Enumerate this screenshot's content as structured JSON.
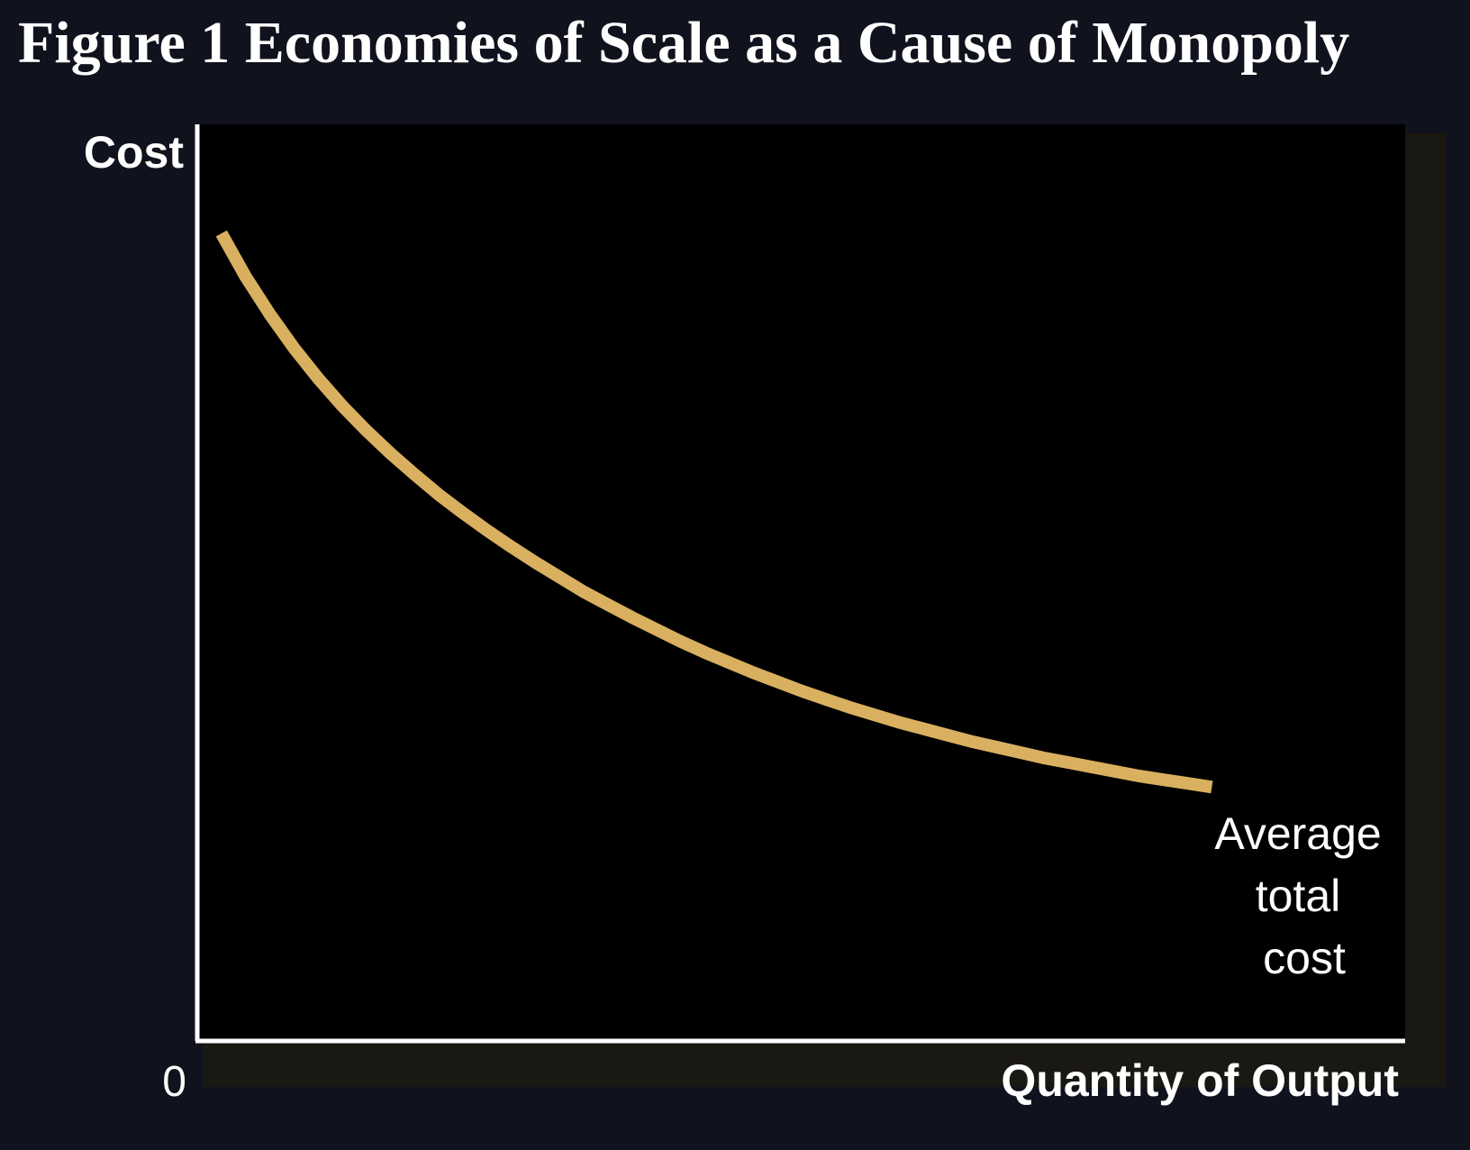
{
  "chart_data": {
    "type": "line",
    "title": "Figure 1 Economies of Scale as a Cause of Monopoly",
    "xlabel": "Quantity of Output",
    "ylabel": "Cost",
    "origin_label": "0",
    "series": [
      {
        "name": "Average total cost",
        "label_lines": [
          "Average",
          "total",
          "cost"
        ],
        "color": "#d9b060",
        "x": [
          2,
          4,
          6,
          8,
          10,
          12,
          14,
          16,
          18,
          20,
          22,
          24,
          26,
          28,
          30,
          32,
          34,
          36,
          38,
          40,
          42,
          44,
          46,
          48,
          50,
          52,
          54,
          56,
          58,
          60,
          62,
          64,
          66,
          68,
          70,
          72,
          74,
          76,
          78,
          80,
          82,
          84
        ],
        "values": [
          88.1,
          83.4,
          79.3,
          75.6,
          72.3,
          69.3,
          66.6,
          64.1,
          61.8,
          59.6,
          57.6,
          55.7,
          53.9,
          52.2,
          50.6,
          49.0,
          47.6,
          46.2,
          44.9,
          43.6,
          42.4,
          41.3,
          40.2,
          39.2,
          38.2,
          37.3,
          36.4,
          35.6,
          34.8,
          34.1,
          33.4,
          32.7,
          32.1,
          31.5,
          30.9,
          30.4,
          29.9,
          29.4,
          28.9,
          28.5,
          28.1,
          27.7
        ]
      }
    ],
    "xlim": [
      0,
      100
    ],
    "ylim": [
      0,
      100
    ],
    "grid": false,
    "legend": "none",
    "colors": {
      "background": "#10121d",
      "plot_area": "#000000",
      "axes": "#ffffff",
      "text": "#ffffff"
    }
  }
}
